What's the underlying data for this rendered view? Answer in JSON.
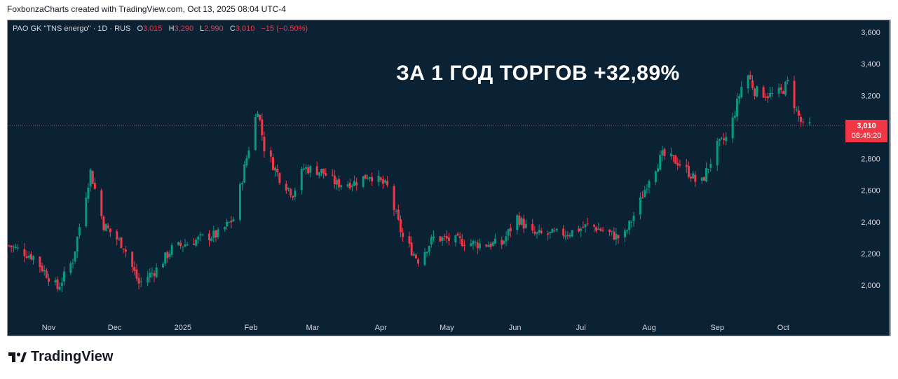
{
  "attribution": "FoxbonzaCharts created with TradingView.com, Oct 13, 2025 08:04 UTC-4",
  "legend": {
    "symbol": "PAO GK \"TNS energo\" · 1D · RUS",
    "o_label": "O",
    "o_value": "3,015",
    "h_label": "H",
    "h_value": "3,290",
    "l_label": "L",
    "l_value": "2,990",
    "c_label": "C",
    "c_value": "3,010",
    "change": "−15 (−0.50%)"
  },
  "headline": "ЗА 1 ГОД ТОРГОВ +32,89%",
  "price_tag": {
    "price": "3,010",
    "countdown": "08:45:20"
  },
  "footer": {
    "brand": "TradingView"
  },
  "colors": {
    "background": "#0b2235",
    "up": "#089981",
    "down": "#f23645",
    "text": "#d1d4dc",
    "last_price_line": "#f23645"
  },
  "chart_data": {
    "type": "candlestick",
    "x_labels": [
      "Nov",
      "Dec",
      "2025",
      "Feb",
      "Mar",
      "Apr",
      "May",
      "Jun",
      "Jul",
      "Aug",
      "Sep",
      "Oct"
    ],
    "y_ticks": [
      "2,000",
      "2,200",
      "2,400",
      "2,600",
      "2,800",
      "3,000",
      "3,200",
      "3,400",
      "3,600"
    ],
    "y_tick_values": [
      2000,
      2200,
      2400,
      2600,
      2800,
      3000,
      3200,
      3400,
      3600
    ],
    "ylim": [
      1870,
      3680
    ],
    "last_price": 3010,
    "close_path": [
      [
        "2024-10-14",
        2250
      ],
      [
        "2024-10-25",
        2180
      ],
      [
        "2024-11-05",
        1980
      ],
      [
        "2024-11-12",
        2160
      ],
      [
        "2024-11-20",
        2720
      ],
      [
        "2024-11-26",
        2380
      ],
      [
        "2024-12-05",
        2250
      ],
      [
        "2024-12-12",
        2010
      ],
      [
        "2024-12-20",
        2100
      ],
      [
        "2024-12-27",
        2230
      ],
      [
        "2025-01-10",
        2300
      ],
      [
        "2025-01-17",
        2320
      ],
      [
        "2025-01-24",
        2420
      ],
      [
        "2025-01-31",
        2870
      ],
      [
        "2025-02-04",
        3120
      ],
      [
        "2025-02-07",
        2870
      ],
      [
        "2025-02-14",
        2680
      ],
      [
        "2025-02-20",
        2580
      ],
      [
        "2025-02-25",
        2740
      ],
      [
        "2025-03-05",
        2720
      ],
      [
        "2025-03-12",
        2640
      ],
      [
        "2025-03-20",
        2650
      ],
      [
        "2025-03-27",
        2700
      ],
      [
        "2025-04-04",
        2620
      ],
      [
        "2025-04-11",
        2300
      ],
      [
        "2025-04-18",
        2160
      ],
      [
        "2025-04-25",
        2300
      ],
      [
        "2025-05-06",
        2280
      ],
      [
        "2025-05-15",
        2260
      ],
      [
        "2025-05-26",
        2260
      ],
      [
        "2025-06-02",
        2430
      ],
      [
        "2025-06-09",
        2320
      ],
      [
        "2025-06-16",
        2320
      ],
      [
        "2025-06-25",
        2330
      ],
      [
        "2025-07-05",
        2380
      ],
      [
        "2025-07-15",
        2320
      ],
      [
        "2025-07-20",
        2290
      ],
      [
        "2025-07-28",
        2530
      ],
      [
        "2025-08-01",
        2680
      ],
      [
        "2025-08-07",
        2820
      ],
      [
        "2025-08-14",
        2780
      ],
      [
        "2025-08-20",
        2700
      ],
      [
        "2025-08-24",
        2620
      ],
      [
        "2025-09-01",
        2880
      ],
      [
        "2025-09-06",
        2940
      ],
      [
        "2025-09-10",
        3150
      ],
      [
        "2025-09-14",
        3360
      ],
      [
        "2025-09-18",
        3230
      ],
      [
        "2025-09-25",
        3200
      ],
      [
        "2025-09-30",
        3220
      ],
      [
        "2025-10-03",
        3280
      ],
      [
        "2025-10-07",
        3100
      ],
      [
        "2025-10-10",
        3000
      ],
      [
        "2025-10-13",
        3010
      ]
    ]
  }
}
